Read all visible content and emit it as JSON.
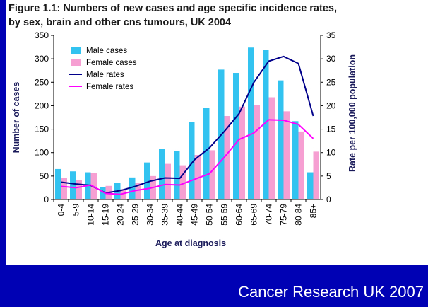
{
  "chart_data": {
    "type": "bar",
    "title_lines": [
      "Figure 1.1: Numbers of new cases and age specific incidence rates,",
      "by sex,  brain and other cns tumours, UK 2004"
    ],
    "xlabel": "Age at diagnosis",
    "ylabel": "Number of cases",
    "y2label": "Rate per 100,000 population",
    "ylim": [
      0,
      350
    ],
    "y2lim": [
      0,
      35
    ],
    "yticks": [
      "0",
      "50",
      "100",
      "150",
      "200",
      "250",
      "300",
      "350"
    ],
    "y2ticks": [
      "0",
      "5",
      "10",
      "15",
      "20",
      "25",
      "30",
      "35"
    ],
    "categories": [
      "0-4",
      "5-9",
      "10-14",
      "15-19",
      "20-24",
      "25-29",
      "30-34",
      "35-39",
      "40-44",
      "45-49",
      "50-54",
      "55-59",
      "60-64",
      "65-69",
      "70-74",
      "75-79",
      "80-84",
      "85+"
    ],
    "series": [
      {
        "name": "Male cases",
        "kind": "bar",
        "axis": "left",
        "color": "#33c3f0",
        "values": [
          65,
          60,
          58,
          27,
          35,
          47,
          79,
          108,
          103,
          165,
          195,
          277,
          270,
          324,
          319,
          254,
          167,
          58
        ]
      },
      {
        "name": "Female cases",
        "kind": "bar",
        "axis": "left",
        "color": "#f59fd2",
        "values": [
          46,
          42,
          57,
          29,
          22,
          35,
          50,
          76,
          73,
          95,
          105,
          178,
          198,
          201,
          218,
          188,
          145,
          102
        ]
      },
      {
        "name": "Male rates",
        "kind": "line",
        "axis": "right",
        "color": "#00008b",
        "values": [
          3.7,
          3.3,
          3.0,
          1.4,
          1.9,
          2.8,
          3.9,
          4.6,
          4.5,
          8.5,
          11.0,
          14.5,
          18.3,
          25.0,
          29.5,
          30.5,
          29.0,
          17.8
        ]
      },
      {
        "name": "Female rates",
        "kind": "line",
        "axis": "right",
        "color": "#ff00ff",
        "values": [
          2.8,
          2.5,
          3.1,
          1.3,
          1.1,
          1.9,
          2.4,
          3.2,
          3.1,
          4.3,
          5.5,
          9.0,
          12.8,
          14.2,
          17.0,
          16.9,
          16.0,
          13.0
        ]
      }
    ],
    "legend_position": "top-left"
  },
  "source_credit": "Cancer Research UK 2007"
}
